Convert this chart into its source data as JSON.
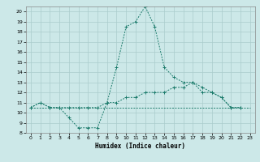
{
  "title": "",
  "xlabel": "Humidex (Indice chaleur)",
  "bg_color": "#cce8e8",
  "grid_color": "#aacccc",
  "line_color": "#1a7a6a",
  "xlim": [
    -0.5,
    23.5
  ],
  "ylim": [
    8,
    20.5
  ],
  "yticks": [
    8,
    9,
    10,
    11,
    12,
    13,
    14,
    15,
    16,
    17,
    18,
    19,
    20
  ],
  "xticks": [
    0,
    1,
    2,
    3,
    4,
    5,
    6,
    7,
    8,
    9,
    10,
    11,
    12,
    13,
    14,
    15,
    16,
    17,
    18,
    19,
    20,
    21,
    22,
    23
  ],
  "series": [
    {
      "x": [
        0,
        1,
        2,
        3,
        4,
        5,
        6,
        7,
        8,
        9,
        10,
        11,
        12,
        13,
        14,
        15,
        16,
        17,
        18,
        19,
        20,
        21,
        22,
        23
      ],
      "y": [
        10.5,
        11.0,
        10.5,
        10.5,
        9.5,
        8.5,
        8.5,
        8.5,
        11.0,
        14.5,
        18.5,
        19.0,
        20.5,
        18.5,
        14.5,
        13.5,
        13.0,
        13.0,
        12.0,
        12.0,
        11.5,
        10.5,
        10.5,
        null
      ],
      "marker": true
    },
    {
      "x": [
        0,
        1,
        2,
        3,
        4,
        5,
        6,
        7,
        8,
        9,
        10,
        11,
        12,
        13,
        14,
        15,
        16,
        17,
        18,
        19,
        20,
        21,
        22,
        23
      ],
      "y": [
        10.5,
        11.0,
        10.5,
        10.5,
        10.5,
        10.5,
        10.5,
        10.5,
        11.0,
        11.0,
        11.5,
        11.5,
        12.0,
        12.0,
        12.0,
        12.5,
        12.5,
        13.0,
        12.5,
        12.0,
        11.5,
        10.5,
        10.5,
        null
      ],
      "marker": true
    },
    {
      "x": [
        0,
        1,
        2,
        3,
        4,
        5,
        6,
        7,
        8,
        9,
        10,
        11,
        12,
        13,
        14,
        15,
        16,
        17,
        18,
        19,
        20,
        21,
        22,
        23
      ],
      "y": [
        10.5,
        10.5,
        10.5,
        10.5,
        10.5,
        10.5,
        10.5,
        10.5,
        10.5,
        10.5,
        10.5,
        10.5,
        10.5,
        10.5,
        10.5,
        10.5,
        10.5,
        10.5,
        10.5,
        10.5,
        10.5,
        10.5,
        10.5,
        10.5
      ],
      "marker": false
    }
  ]
}
